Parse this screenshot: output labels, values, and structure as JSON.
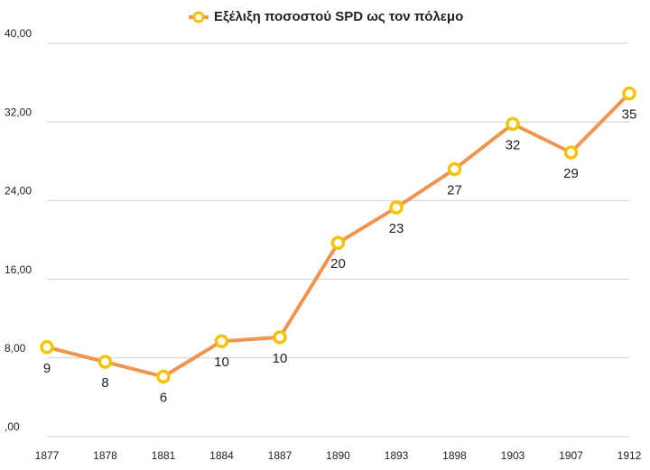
{
  "chart_data": {
    "type": "line",
    "categories": [
      "1877",
      "1878",
      "1881",
      "1884",
      "1887",
      "1890",
      "1893",
      "1898",
      "1903",
      "1907",
      "1912"
    ],
    "series": [
      {
        "name": "Εξέλιξη ποσοστού SPD ως τον πόλεμο",
        "color": "#f0954f",
        "marker_color": "#f5c400",
        "values": [
          9.1,
          7.6,
          6.1,
          9.7,
          10.1,
          19.7,
          23.3,
          27.2,
          31.8,
          28.9,
          34.9
        ],
        "value_labels": [
          "9",
          "8",
          "6",
          "10",
          "10",
          "20",
          "23",
          "27",
          "32",
          "29",
          "35"
        ]
      }
    ],
    "ylim": [
      0,
      40
    ],
    "yticks": [
      {
        "value": 0,
        "label": ",00"
      },
      {
        "value": 8,
        "label": "8,00"
      },
      {
        "value": 16,
        "label": "16,00"
      },
      {
        "value": 24,
        "label": "24,00"
      },
      {
        "value": 32,
        "label": "32,00"
      },
      {
        "value": 40,
        "label": "40,00"
      }
    ],
    "grid": true,
    "legend": "top"
  }
}
